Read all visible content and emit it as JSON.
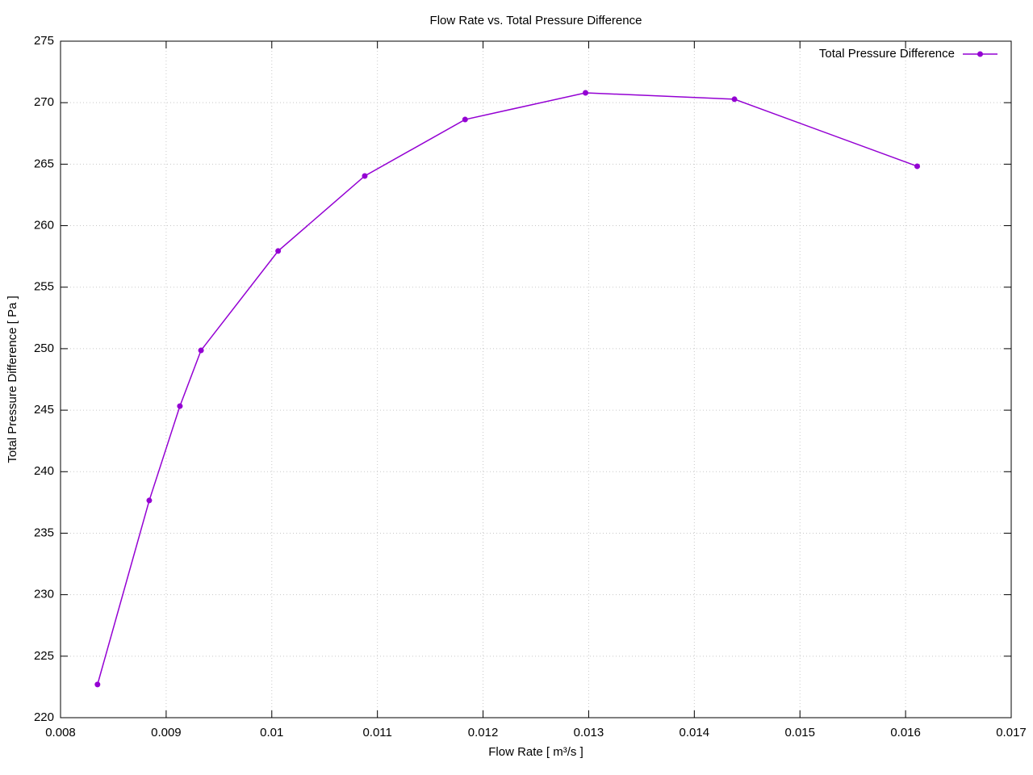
{
  "chart_data": {
    "type": "line",
    "title": "Flow Rate vs. Total Pressure Difference",
    "xlabel": "Flow Rate [ m³/s ]",
    "ylabel": "Total Pressure Difference [ Pa ]",
    "x": [
      0.00835,
      0.00884,
      0.00913,
      0.00933,
      0.01006,
      0.01088,
      0.01183,
      0.01297,
      0.01438,
      0.01611
    ],
    "series": [
      {
        "name": "Total Pressure Difference",
        "color": "#9400d3",
        "values": [
          222.7,
          237.66,
          245.33,
          249.86,
          257.94,
          264.04,
          268.63,
          270.8,
          270.28,
          264.83
        ]
      }
    ],
    "xlim": [
      0.008,
      0.017
    ],
    "xticks": [
      0.008,
      0.009,
      0.01,
      0.011,
      0.012,
      0.013,
      0.014,
      0.015,
      0.016,
      0.017
    ],
    "ylim": [
      220,
      275
    ],
    "yticks": [
      220,
      225,
      230,
      235,
      240,
      245,
      250,
      255,
      260,
      265,
      270,
      275
    ],
    "grid": true,
    "legend": "top-right"
  }
}
